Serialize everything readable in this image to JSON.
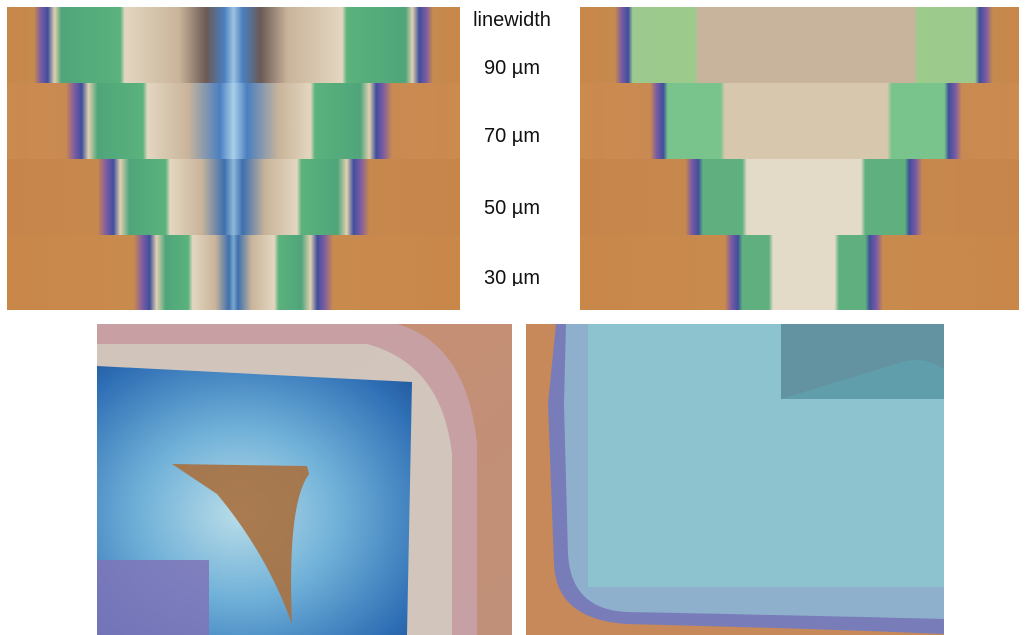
{
  "labels": {
    "header": "linewidth",
    "widths": [
      "90 µm",
      "70 µm",
      "50 µm",
      "30 µm"
    ]
  },
  "colors": {
    "substrate": "#c9874a",
    "fringe_blue": "#5a5fb0",
    "fringe_violet": "#8a5aa0",
    "green_band": "#58b27a",
    "light_green": "#9cc98e",
    "center_tan": "#d7c7ad",
    "center_beige": "#c8b49c",
    "blue_core": "#6aa7cf",
    "film_cyan": "#7ab4c8",
    "film_blue": "#3e86c2",
    "residue_brown": "#a8703f",
    "corner_purple": "#7f74b8"
  }
}
